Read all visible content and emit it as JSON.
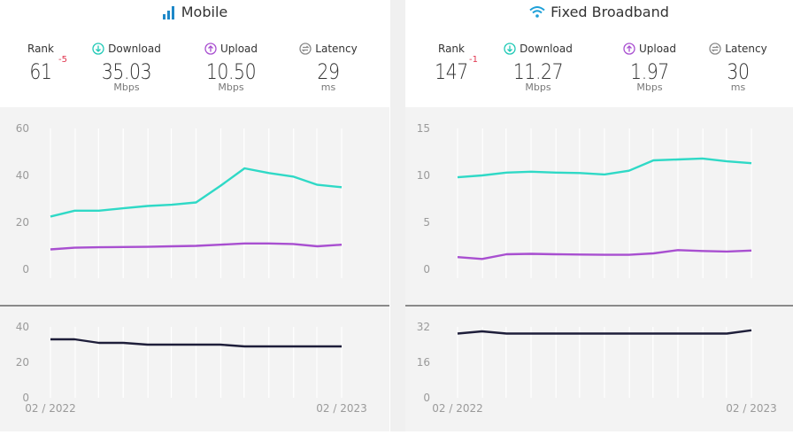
{
  "panels": [
    {
      "title": "Mobile",
      "icon": "signal-bars-icon",
      "rank": {
        "label": "Rank",
        "value": "61",
        "delta": "-5"
      },
      "download": {
        "label": "Download",
        "value": "35.03",
        "unit": "Mbps"
      },
      "upload": {
        "label": "Upload",
        "value": "10.50",
        "unit": "Mbps"
      },
      "latency": {
        "label": "Latency",
        "value": "29",
        "unit": "ms"
      }
    },
    {
      "title": "Fixed Broadband",
      "icon": "wifi-icon",
      "rank": {
        "label": "Rank",
        "value": "147",
        "delta": "-1"
      },
      "download": {
        "label": "Download",
        "value": "11.27",
        "unit": "Mbps"
      },
      "upload": {
        "label": "Upload",
        "value": "1.97",
        "unit": "Mbps"
      },
      "latency": {
        "label": "Latency",
        "value": "30",
        "unit": "ms"
      }
    }
  ],
  "colors": {
    "download": "#2fd9c6",
    "upload": "#a84fd0",
    "latency": "#1e1e3a",
    "download_icon": "#1fc9b6",
    "upload_icon": "#a84fd0",
    "latency_icon": "#8a8a8a",
    "wifi": "#1ea0d8",
    "signal": "#1e88c8",
    "delta": "#e0344d"
  },
  "chart_data": [
    {
      "type": "line",
      "panel": "Mobile",
      "x": [
        "02 / 2022",
        "",
        "",
        "",
        "",
        "",
        "",
        "",
        "",
        "",
        "",
        "",
        "02 / 2023"
      ],
      "x_tick_labels": [
        "02 / 2022",
        "02 / 2023"
      ],
      "speed_chart": {
        "ylim": [
          0,
          60
        ],
        "yticks": [
          0,
          20,
          40,
          60
        ],
        "series": [
          {
            "key": "download",
            "values": [
              22.5,
              25,
              25,
              26,
              27,
              27.5,
              28.5,
              35.5,
              43,
              41,
              39.5,
              36,
              35
            ]
          },
          {
            "key": "upload",
            "values": [
              8.5,
              9.2,
              9.4,
              9.5,
              9.6,
              9.8,
              10,
              10.5,
              11,
              11,
              10.8,
              9.8,
              10.5
            ]
          }
        ]
      },
      "latency_chart": {
        "ylim": [
          0,
          40
        ],
        "yticks": [
          0,
          20,
          40
        ],
        "series": [
          {
            "key": "latency",
            "values": [
              33,
              33,
              31,
              31,
              30,
              30,
              30,
              30,
              29,
              29,
              29,
              29,
              29
            ]
          }
        ]
      }
    },
    {
      "type": "line",
      "panel": "Fixed Broadband",
      "x": [
        "02 / 2022",
        "",
        "",
        "",
        "",
        "",
        "",
        "",
        "",
        "",
        "",
        "",
        "02 / 2023"
      ],
      "x_tick_labels": [
        "02 / 2022",
        "02 / 2023"
      ],
      "speed_chart": {
        "ylim": [
          0,
          15
        ],
        "yticks": [
          0,
          5,
          10,
          15
        ],
        "series": [
          {
            "key": "download",
            "values": [
              9.8,
              10,
              10.3,
              10.4,
              10.3,
              10.25,
              10.1,
              10.5,
              11.6,
              11.7,
              11.8,
              11.5,
              11.3
            ]
          },
          {
            "key": "upload",
            "values": [
              1.3,
              1.1,
              1.6,
              1.65,
              1.6,
              1.58,
              1.55,
              1.55,
              1.7,
              2.05,
              1.95,
              1.9,
              2.0
            ]
          }
        ]
      },
      "latency_chart": {
        "ylim": [
          0,
          32
        ],
        "yticks": [
          0,
          16,
          32
        ],
        "series": [
          {
            "key": "latency",
            "values": [
              29,
              30,
              29,
              29,
              29,
              29,
              29,
              29,
              29,
              29,
              29,
              29,
              30.5
            ]
          }
        ]
      }
    }
  ]
}
